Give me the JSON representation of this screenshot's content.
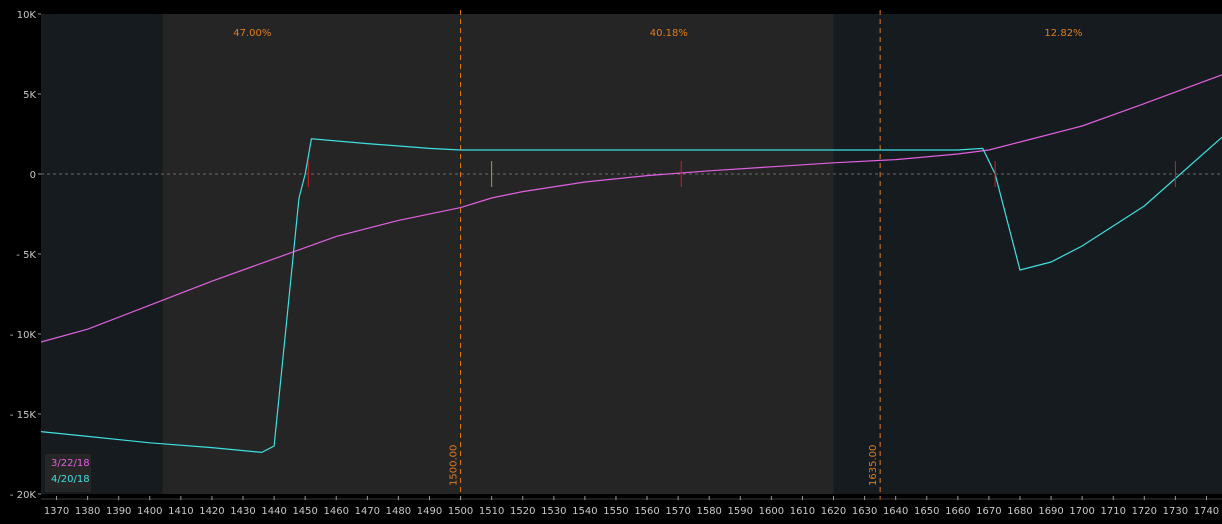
{
  "chart_data": {
    "type": "line",
    "x_range": [
      1365,
      1745
    ],
    "y_range": [
      -20000,
      10000
    ],
    "x_ticks": [
      "1370",
      "1380",
      "1390",
      "1400",
      "1410",
      "1420",
      "1430",
      "1440",
      "1450",
      "1460",
      "1470",
      "1480",
      "1490",
      "1500",
      "1510",
      "1520",
      "1530",
      "1540",
      "1550",
      "1560",
      "1570",
      "1580",
      "1590",
      "1600",
      "1610",
      "1620",
      "1630",
      "1640",
      "1650",
      "1660",
      "1670",
      "1680",
      "1690",
      "1700",
      "1710",
      "1720",
      "1730",
      "1740"
    ],
    "y_ticks": [
      {
        "label": "10K",
        "value": 10000
      },
      {
        "label": "5K",
        "value": 5000
      },
      {
        "label": "0",
        "value": 0
      },
      {
        "label": "- 5K",
        "value": -5000
      },
      {
        "label": "- 10K",
        "value": -10000
      },
      {
        "label": "- 15K",
        "value": -15000
      },
      {
        "label": "- 20K",
        "value": -20000
      }
    ],
    "regions": [
      {
        "from": 1365,
        "to": 1404,
        "shade": "dark"
      },
      {
        "from": 1404,
        "to": 1620,
        "shade": "light"
      },
      {
        "from": 1620,
        "to": 1745,
        "shade": "dark"
      }
    ],
    "probabilities": [
      {
        "label": "47.00%",
        "x": 1433
      },
      {
        "label": "40.18%",
        "x": 1567
      },
      {
        "label": "12.82%",
        "x": 1694
      }
    ],
    "vertical_lines": [
      {
        "label": "1500.00",
        "x": 1500
      },
      {
        "label": "1635.00",
        "x": 1635
      }
    ],
    "series": [
      {
        "name": "3/22/18",
        "color": "#e060e0",
        "x": [
          1365,
          1380,
          1400,
          1420,
          1440,
          1460,
          1480,
          1500,
          1510,
          1520,
          1540,
          1560,
          1580,
          1600,
          1620,
          1640,
          1660,
          1670,
          1680,
          1700,
          1720,
          1745
        ],
        "y": [
          -10500,
          -9700,
          -8200,
          -6700,
          -5300,
          -3900,
          -2900,
          -2100,
          -1500,
          -1100,
          -500,
          -100,
          200,
          450,
          700,
          900,
          1250,
          1500,
          2000,
          3000,
          4400,
          6200
        ]
      },
      {
        "name": "4/20/18",
        "color": "#3ee0e0",
        "x": [
          1365,
          1380,
          1400,
          1420,
          1436,
          1440,
          1448,
          1450,
          1452,
          1470,
          1490,
          1500,
          1520,
          1560,
          1600,
          1640,
          1660,
          1668,
          1672,
          1680,
          1690,
          1700,
          1720,
          1745
        ],
        "y": [
          -16100,
          -16400,
          -16800,
          -17100,
          -17400,
          -17000,
          -1500,
          0,
          2200,
          1900,
          1600,
          1500,
          1500,
          1500,
          1500,
          1500,
          1500,
          1600,
          0,
          -6000,
          -5500,
          -4500,
          -2000,
          2300
        ]
      }
    ],
    "markers": [
      {
        "x": 1451,
        "y": 0,
        "color": "#d02020"
      },
      {
        "x": 1510,
        "y": 0,
        "color": "#a0a040"
      },
      {
        "x": 1571,
        "y": 0,
        "color": "#d02020"
      },
      {
        "x": 1672,
        "y": 0,
        "color": "#d02020"
      },
      {
        "x": 1730,
        "y": 0,
        "color": "#d02020"
      }
    ],
    "grid": false,
    "legend_position": "bottom-left",
    "colors": {
      "background": "#000000",
      "dark_region": "#161b1f",
      "light_region": "#252525",
      "axis_text": "#c8c8c8",
      "annotation": "#e07b1a"
    }
  }
}
